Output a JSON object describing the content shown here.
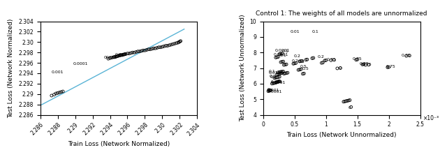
{
  "chart_data": [
    {
      "type": "scatter",
      "xlabel": "Train Loss (Network Normalized)",
      "ylabel": "Test Loss (Network Normalized)",
      "xlim": [
        2.286,
        2.304
      ],
      "ylim": [
        2.286,
        2.304
      ],
      "xticks": [
        2.286,
        2.288,
        2.29,
        2.292,
        2.294,
        2.296,
        2.298,
        {
          "value": 2.3,
          "label": "2.30"
        },
        2.302,
        2.304
      ],
      "yticks": [
        2.286,
        2.288,
        2.29,
        2.292,
        2.294,
        2.296,
        2.298,
        {
          "value": 2.3,
          "label": "2.30"
        },
        2.302,
        2.304
      ],
      "series": [
        {
          "type": "line",
          "color": "#5ab4d6",
          "line_style": "solid",
          "x": [
            2.286,
            2.3025
          ],
          "values": [
            2.2878,
            2.3025
          ]
        },
        {
          "type": "scatter",
          "color": "black",
          "marker": "o",
          "x": [
            2.2873,
            2.2876,
            2.2878,
            2.288,
            2.2882,
            2.2884,
            2.2886,
            2.2938,
            2.294,
            2.2942,
            2.2944,
            2.2945,
            2.2946,
            2.2947,
            2.2948,
            2.2949,
            2.295,
            2.2951,
            2.2952,
            2.2953,
            2.2954,
            2.2955,
            2.2956,
            2.2957,
            2.2958,
            2.296,
            2.2962,
            2.2964,
            2.2966,
            2.2968,
            2.297,
            2.2972,
            2.2974,
            2.2976,
            2.2978,
            2.298,
            2.2982,
            2.2984,
            2.2986,
            2.2988,
            2.299,
            2.2992,
            2.2994,
            2.2996,
            2.2998,
            2.3,
            2.3002,
            2.3004,
            2.3006,
            2.3008,
            2.301,
            2.3012,
            2.3014,
            2.3016,
            2.3018,
            2.3019,
            2.302,
            2.3021
          ],
          "values": [
            2.2897,
            2.2899,
            2.2901,
            2.2902,
            2.2903,
            2.2904,
            2.2905,
            2.2968,
            2.2969,
            2.297,
            2.2971,
            2.2971,
            2.2972,
            2.2972,
            2.2973,
            2.2973,
            2.2974,
            2.2974,
            2.2975,
            2.2975,
            2.2975,
            2.2976,
            2.2976,
            2.2977,
            2.2977,
            2.2978,
            2.2978,
            2.2979,
            2.298,
            2.298,
            2.2981,
            2.2982,
            2.2982,
            2.2983,
            2.2984,
            2.2984,
            2.2985,
            2.2986,
            2.2986,
            2.2987,
            2.2988,
            2.2988,
            2.2989,
            2.299,
            2.299,
            2.2991,
            2.2992,
            2.2993,
            2.2993,
            2.2994,
            2.2995,
            2.2996,
            2.2997,
            2.2998,
            2.2999,
            2.3,
            2.3001,
            2.3002
          ]
        }
      ],
      "annotations": [
        {
          "text": "0.001",
          "x": 2.2873,
          "y": 2.2942
        },
        {
          "text": "0.0001",
          "x": 2.2898,
          "y": 2.2958
        },
        {
          "text": "00001",
          "x": 2.2933,
          "y": 2.297
        },
        {
          "text": "0.001",
          "x": 2.2946,
          "y": 2.2975
        }
      ]
    },
    {
      "type": "scatter",
      "title": "Control 1: The weights of all models are unnormalized",
      "xlabel": "Train Loss (Network Unnormalized)",
      "ylabel": "Test Loss (Network Unnormalized)",
      "x_multiplier": "×10⁻³",
      "xlim": [
        0,
        0.0025
      ],
      "ylim": [
        4,
        10
      ],
      "xticks": [
        0,
        {
          "value": 0.0005,
          "label": "0.5"
        },
        {
          "value": 0.001,
          "label": "1"
        },
        {
          "value": 0.0015,
          "label": "1.5"
        },
        {
          "value": 0.002,
          "label": "2"
        },
        {
          "value": 0.0025,
          "label": "2.5"
        }
      ],
      "yticks": [
        4,
        5,
        6,
        7,
        8,
        9,
        10
      ],
      "series": [
        {
          "type": "scatter",
          "color": "black",
          "marker": "o",
          "x": [
            8e-05,
            0.0001,
            0.00012,
            9e-05,
            0.00011,
            0.00014,
            0.00016,
            0.00018,
            0.0002,
            0.00021,
            0.00022,
            0.00023,
            0.00024,
            0.00025,
            0.00026,
            0.00018,
            0.0002,
            0.00022,
            0.00024,
            0.00026,
            0.00022,
            0.00024,
            0.00026,
            0.00028,
            0.0003,
            0.00024,
            0.00026,
            0.00028,
            0.0003,
            0.00032,
            0.00033,
            0.00035,
            0.00037,
            0.00039,
            0.00033,
            0.00035,
            0.00037,
            0.00028,
            0.0003,
            0.00032,
            0.0002,
            0.00022,
            0.00024,
            0.00026,
            0.00028,
            0.0003,
            0.00048,
            0.0005,
            0.00052,
            0.00058,
            0.0006,
            0.00062,
            0.00056,
            0.00058,
            0.0006,
            0.00063,
            0.00065,
            0.00068,
            0.0007,
            0.00078,
            0.0008,
            0.00093,
            0.00095,
            0.00098,
            0.001,
            0.00108,
            0.00113,
            0.00118,
            0.00123,
            0.00128,
            0.0013,
            0.00132,
            0.00134,
            0.00136,
            0.00138,
            0.0014,
            0.00148,
            0.0015,
            0.00158,
            0.0016,
            0.00163,
            0.00168,
            0.00198,
            0.002,
            0.00228,
            0.00233
          ],
          "values": [
            5.52,
            5.55,
            5.57,
            5.6,
            5.58,
            6.0,
            6.02,
            6.04,
            6.06,
            6.08,
            6.1,
            6.12,
            6.13,
            6.14,
            6.15,
            6.36,
            6.38,
            6.4,
            6.42,
            6.44,
            6.6,
            6.62,
            6.64,
            6.66,
            6.68,
            6.72,
            6.74,
            6.76,
            6.77,
            6.78,
            6.64,
            6.66,
            6.68,
            6.7,
            7.2,
            7.22,
            7.24,
            7.38,
            7.4,
            7.42,
            7.68,
            7.7,
            7.72,
            7.9,
            7.92,
            7.93,
            7.28,
            7.3,
            7.32,
            7.43,
            7.45,
            7.46,
            6.88,
            6.9,
            6.92,
            6.63,
            6.65,
            7.53,
            7.55,
            7.63,
            7.65,
            7.33,
            7.35,
            7.48,
            7.5,
            7.5,
            7.52,
            6.98,
            7.0,
            4.84,
            4.86,
            4.88,
            4.9,
            4.92,
            4.94,
            4.5,
            7.53,
            7.55,
            7.23,
            7.25,
            7.2,
            7.21,
            7.05,
            7.06,
            7.78,
            7.8
          ]
        }
      ],
      "annotations": [
        {
          "text": "0.01",
          "x": 0.00043,
          "y": 9.32
        },
        {
          "text": "0.1",
          "x": 0.00078,
          "y": 9.32
        },
        {
          "text": "0.0001",
          "x": 0.00019,
          "y": 8.12
        },
        {
          "text": "0.1",
          "x": 0.000295,
          "y": 8.07
        },
        {
          "text": "0.0001",
          "x": 0.00016,
          "y": 7.85
        },
        {
          "text": "0.1",
          "x": 0.000265,
          "y": 7.8
        },
        {
          "text": "0.2",
          "x": 0.00049,
          "y": 7.76
        },
        {
          "text": "0.2",
          "x": 0.00086,
          "y": 7.7
        },
        {
          "text": "0.2",
          "x": 0.00045,
          "y": 7.46
        },
        {
          "text": "0.5",
          "x": 0.000555,
          "y": 7.41
        },
        {
          "text": "0.75",
          "x": 0.00101,
          "y": 7.55
        },
        {
          "text": "0.5",
          "x": 0.00059,
          "y": 7.08
        },
        {
          "text": "0.5",
          "x": 0.00062,
          "y": 6.96
        },
        {
          "text": "0.75",
          "x": 0.00142,
          "y": 7.6
        },
        {
          "text": "0.75",
          "x": 0.00153,
          "y": 7.28
        },
        {
          "text": "0.75",
          "x": 0.00158,
          "y": 7.24
        },
        {
          "text": "0.75",
          "x": 0.00196,
          "y": 7.08
        },
        {
          "text": "0.75",
          "x": 0.0022,
          "y": 7.82
        },
        {
          "text": "0.0001",
          "x": 6e-05,
          "y": 5.5
        },
        {
          "text": "0.001",
          "x": 6e-05,
          "y": 5.57
        },
        {
          "text": "0",
          "x": 0.00136,
          "y": 4.47
        },
        {
          "text": "0",
          "x": 0.0012,
          "y": 7.0
        },
        {
          "text": "0.0001",
          "x": 0.000118,
          "y": 6.04
        },
        {
          "text": "0.001",
          "x": 0.000118,
          "y": 6.11
        },
        {
          "text": "0.1",
          "x": 8.8e-05,
          "y": 6.77
        },
        {
          "text": "0.01",
          "x": 8.2e-05,
          "y": 6.7
        },
        {
          "text": "0.0",
          "x": 0.0001,
          "y": 6.48
        },
        {
          "text": "0.2",
          "x": 0.000108,
          "y": 6.42
        }
      ]
    }
  ]
}
